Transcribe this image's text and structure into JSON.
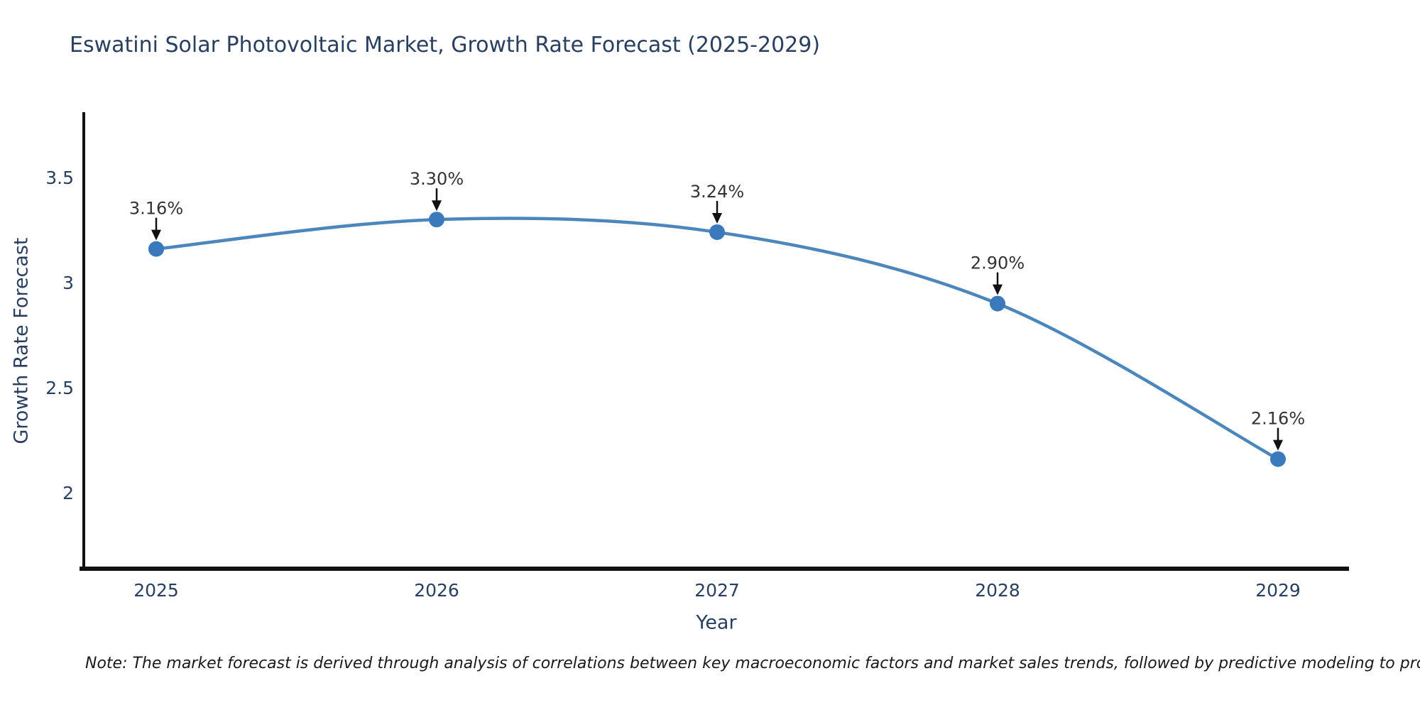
{
  "page": {
    "background": "#ffffff"
  },
  "footnote": {
    "text": "Note: The market forecast is derived through analysis of correlations between key macroeconomic factors and market sales trends, followed by predictive modeling to project future sales"
  },
  "chart_data": {
    "type": "line",
    "title": "Eswatini Solar Photovoltaic Market, Growth Rate Forecast (2025-2029)",
    "xlabel": "Year",
    "ylabel": "Growth Rate Forecast",
    "x": [
      "2025",
      "2026",
      "2027",
      "2028",
      "2029"
    ],
    "series": [
      {
        "name": "Growth Rate Forecast",
        "values": [
          3.16,
          3.3,
          3.24,
          2.9,
          2.16
        ]
      }
    ],
    "point_labels": [
      "3.16%",
      "3.30%",
      "3.24%",
      "2.90%",
      "2.16%"
    ],
    "ytick_values": [
      3.5,
      3.0,
      2.5,
      2.0
    ],
    "ytick_labels": [
      "3.5",
      "3",
      "2.5",
      "2"
    ],
    "ylim": [
      1.64,
      3.82
    ],
    "grid": false,
    "legend_position": "none",
    "line_shape": "spline",
    "colors": {
      "line": "#4c86ba",
      "marker": "#3a7abc",
      "axis": "#111111",
      "tick_text": "#2a3f5f",
      "annotation_text": "#333333",
      "arrow": "#111111",
      "title_text": "#2a3f5f"
    }
  }
}
